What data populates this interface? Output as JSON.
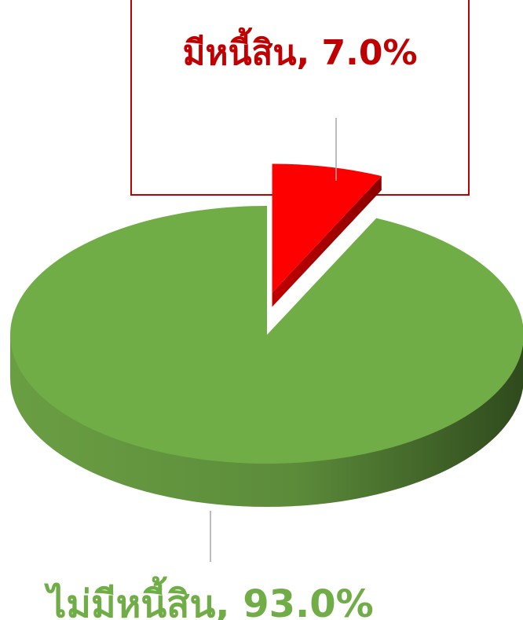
{
  "chart_data": {
    "type": "pie",
    "values": [
      7.0,
      93.0
    ],
    "value_labels": [
      "มีหนี้สิน, 7.0%",
      "ไม่มีหนี้สิน, 93.0%"
    ],
    "colors": [
      "#ff0000",
      "#70ad47"
    ],
    "label_colors": [
      "#c00000",
      "#70ad47"
    ]
  }
}
